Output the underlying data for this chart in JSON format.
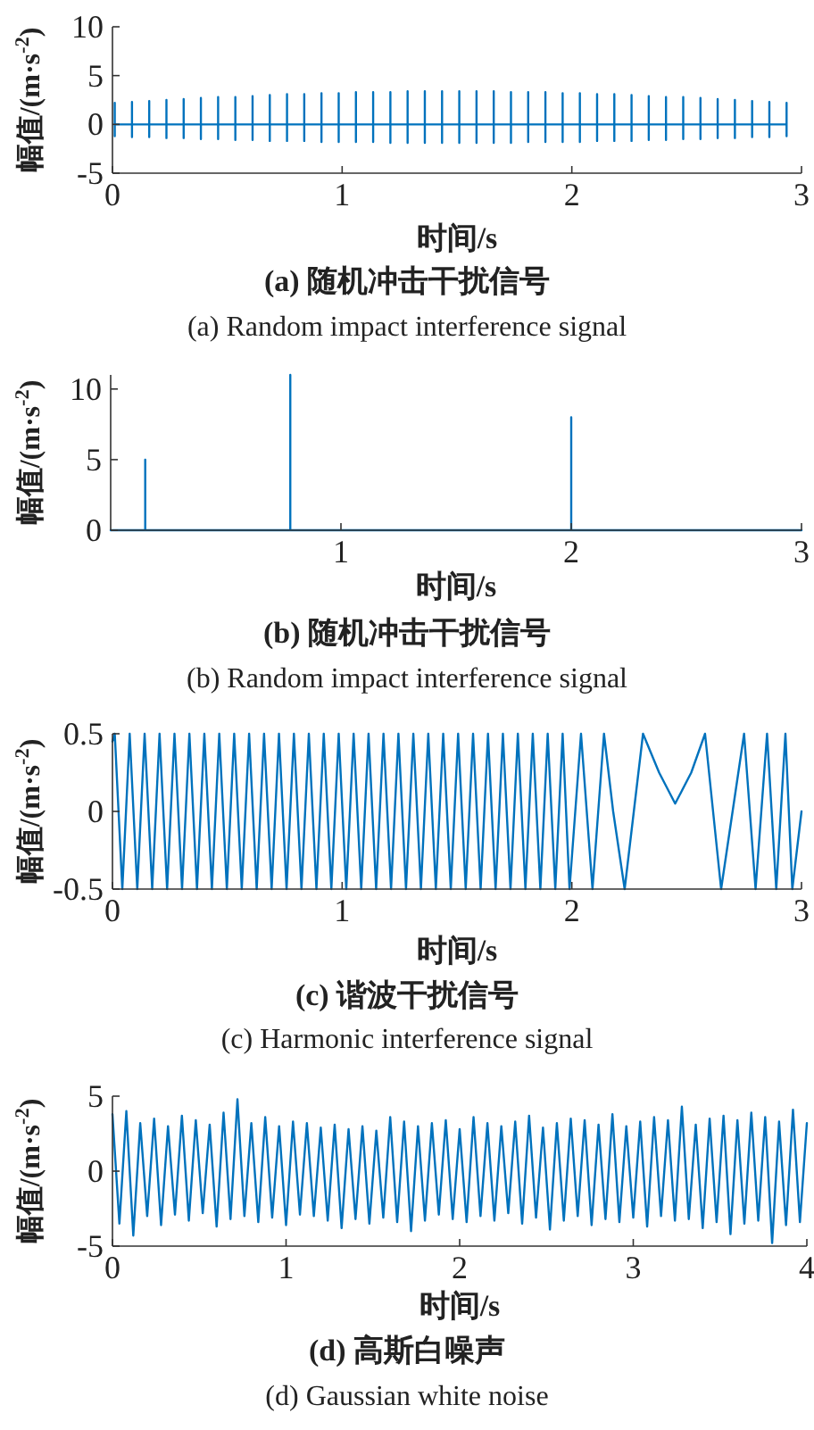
{
  "chart_data": [
    {
      "type": "line",
      "title": "(a) 随机冲击干扰信号",
      "subtitle": "(a) Random impact interference signal",
      "xlabel": "时间/s",
      "ylabel": "幅值/(m·s$^{-2}$)",
      "xlim": [
        0,
        3
      ],
      "ylim": [
        -5,
        10
      ],
      "xticks": [
        0,
        1,
        2,
        3
      ],
      "yticks": [
        -5,
        0,
        5,
        10
      ],
      "color": "#0072bd",
      "x": [
        0.01,
        0.01,
        0.01,
        0.01,
        0.085,
        0.085,
        0.085,
        0.085,
        0.16,
        0.16,
        0.16,
        0.16,
        0.235,
        0.235,
        0.235,
        0.235,
        0.31,
        0.31,
        0.31,
        0.31,
        0.385,
        0.385,
        0.385,
        0.385,
        0.46,
        0.46,
        0.46,
        0.46,
        0.535,
        0.535,
        0.535,
        0.535,
        0.61,
        0.61,
        0.61,
        0.61,
        0.685,
        0.685,
        0.685,
        0.685,
        0.76,
        0.76,
        0.76,
        0.76,
        0.835,
        0.835,
        0.835,
        0.835,
        0.91,
        0.91,
        0.91,
        0.91,
        0.985,
        0.985,
        0.985,
        0.985,
        1.06,
        1.06,
        1.06,
        1.06,
        1.135,
        1.135,
        1.135,
        1.135,
        1.21,
        1.21,
        1.21,
        1.21,
        1.285,
        1.285,
        1.285,
        1.285,
        1.36,
        1.36,
        1.36,
        1.36,
        1.435,
        1.435,
        1.435,
        1.435,
        1.51,
        1.51,
        1.51,
        1.51,
        1.585,
        1.585,
        1.585,
        1.585,
        1.66,
        1.66,
        1.66,
        1.66,
        1.735,
        1.735,
        1.735,
        1.735,
        1.81,
        1.81,
        1.81,
        1.81,
        1.885,
        1.885,
        1.885,
        1.885,
        1.96,
        1.96,
        1.96,
        1.96,
        2.035,
        2.035,
        2.035,
        2.035,
        2.11,
        2.11,
        2.11,
        2.11,
        2.185,
        2.185,
        2.185,
        2.185,
        2.26,
        2.26,
        2.26,
        2.26,
        2.335,
        2.335,
        2.335,
        2.335,
        2.41,
        2.41,
        2.41,
        2.41,
        2.485,
        2.485,
        2.485,
        2.485,
        2.56,
        2.56,
        2.56,
        2.56,
        2.635,
        2.635,
        2.635,
        2.635,
        2.71,
        2.71,
        2.71,
        2.71,
        2.785,
        2.785,
        2.785,
        2.785,
        2.86,
        2.86,
        2.86,
        2.86,
        2.935,
        2.935,
        2.935,
        2.935
      ],
      "values": [
        0,
        2.2,
        -1.2,
        0,
        0,
        2.3,
        -1.3,
        0,
        0,
        2.4,
        -1.3,
        0,
        0,
        2.5,
        -1.4,
        0,
        0,
        2.6,
        -1.4,
        0,
        0,
        2.7,
        -1.5,
        0,
        0,
        2.8,
        -1.5,
        0,
        0,
        2.8,
        -1.6,
        0,
        0,
        2.9,
        -1.6,
        0,
        0,
        3.0,
        -1.7,
        0,
        0,
        3.1,
        -1.7,
        0,
        0,
        3.1,
        -1.7,
        0,
        0,
        3.2,
        -1.8,
        0,
        0,
        3.2,
        -1.8,
        0,
        0,
        3.3,
        -1.8,
        0,
        0,
        3.3,
        -1.8,
        0,
        0,
        3.3,
        -1.9,
        0,
        0,
        3.4,
        -1.9,
        0,
        0,
        3.4,
        -1.9,
        0,
        0,
        3.4,
        -1.9,
        0,
        0,
        3.4,
        -1.9,
        0,
        0,
        3.4,
        -1.9,
        0,
        0,
        3.4,
        -1.9,
        0,
        0,
        3.3,
        -1.9,
        0,
        0,
        3.3,
        -1.8,
        0,
        0,
        3.3,
        -1.8,
        0,
        0,
        3.2,
        -1.8,
        0,
        0,
        3.2,
        -1.8,
        0,
        0,
        3.1,
        -1.7,
        0,
        0,
        3.1,
        -1.7,
        0,
        0,
        3.0,
        -1.7,
        0,
        0,
        2.9,
        -1.6,
        0,
        0,
        2.8,
        -1.6,
        0,
        0,
        2.8,
        -1.5,
        0,
        0,
        2.7,
        -1.5,
        0,
        0,
        2.6,
        -1.4,
        0,
        0,
        2.5,
        -1.4,
        0,
        0,
        2.4,
        -1.3,
        0,
        0,
        2.3,
        -1.3,
        0,
        0,
        2.2,
        -1.2,
        0
      ]
    },
    {
      "type": "line",
      "title": "(b) 随机冲击干扰信号",
      "subtitle": "(b) Random impact interference signal",
      "xlabel": "时间/s",
      "ylabel": "幅值/(m·s$^{-2}$)",
      "xlim": [
        0,
        3
      ],
      "ylim": [
        0,
        11
      ],
      "xticks": [
        1,
        2,
        3
      ],
      "yticks": [
        0,
        5,
        10
      ],
      "color": "#0072bd",
      "x": [
        0,
        0.15,
        0.15,
        0.15,
        0.78,
        0.78,
        0.78,
        2.0,
        2.0,
        2.0,
        3.0
      ],
      "values": [
        0,
        0,
        5,
        0,
        0,
        11,
        0,
        0,
        8,
        0,
        0
      ]
    },
    {
      "type": "line",
      "title": "(c) 谐波干扰信号",
      "subtitle": "(c) Harmonic interference signal",
      "xlabel": "时间/s",
      "ylabel": "幅值/(m·s$^{-2}$)",
      "xlim": [
        0,
        3
      ],
      "ylim": [
        -0.5,
        0.5
      ],
      "xticks": [
        0,
        1,
        2,
        3
      ],
      "yticks": [
        -0.5,
        0,
        0.5
      ],
      "color": "#0072bd",
      "x": [
        0,
        0.01,
        0.043,
        0.075,
        0.108,
        0.14,
        0.173,
        0.205,
        0.238,
        0.27,
        0.303,
        0.335,
        0.368,
        0.4,
        0.433,
        0.465,
        0.498,
        0.53,
        0.563,
        0.595,
        0.628,
        0.66,
        0.693,
        0.725,
        0.758,
        0.79,
        0.823,
        0.855,
        0.888,
        0.92,
        0.953,
        0.985,
        1.018,
        1.05,
        1.083,
        1.115,
        1.148,
        1.18,
        1.213,
        1.245,
        1.278,
        1.31,
        1.343,
        1.375,
        1.408,
        1.44,
        1.473,
        1.505,
        1.538,
        1.57,
        1.603,
        1.635,
        1.668,
        1.7,
        1.733,
        1.765,
        1.798,
        1.83,
        1.863,
        1.895,
        1.928,
        1.96,
        1.99,
        2.04,
        2.09,
        2.14,
        2.18,
        2.23,
        2.27,
        2.31,
        2.38,
        2.45,
        2.52,
        2.58,
        2.65,
        2.75,
        2.8,
        2.85,
        2.89,
        2.93,
        2.96,
        3
      ],
      "values": [
        0.45,
        0.5,
        -0.5,
        0.5,
        -0.5,
        0.5,
        -0.5,
        0.5,
        -0.5,
        0.5,
        -0.5,
        0.5,
        -0.5,
        0.5,
        -0.5,
        0.5,
        -0.5,
        0.5,
        -0.5,
        0.5,
        -0.5,
        0.5,
        -0.5,
        0.5,
        -0.5,
        0.5,
        -0.5,
        0.5,
        -0.5,
        0.5,
        -0.5,
        0.5,
        -0.5,
        0.5,
        -0.5,
        0.5,
        -0.5,
        0.5,
        -0.5,
        0.5,
        -0.5,
        0.5,
        -0.5,
        0.5,
        -0.5,
        0.5,
        -0.5,
        0.5,
        -0.5,
        0.5,
        -0.5,
        0.5,
        -0.5,
        0.5,
        -0.5,
        0.5,
        -0.5,
        0.5,
        -0.5,
        0.5,
        -0.5,
        0.5,
        -0.5,
        0.5,
        -0.5,
        0.5,
        0,
        -0.5,
        0,
        0.5,
        0.25,
        0.05,
        0.25,
        0.5,
        -0.5,
        0.5,
        -0.5,
        0.5,
        -0.5,
        0.5,
        -0.5,
        0
      ]
    },
    {
      "type": "line",
      "title": "(d) 高斯白噪声",
      "subtitle": "(d) Gaussian white noise",
      "xlabel": "时间/s",
      "ylabel": "幅值/(m·s$^{-2}$)",
      "xlim": [
        0,
        4
      ],
      "ylim": [
        -5,
        5
      ],
      "xticks": [
        0,
        1,
        2,
        3,
        4
      ],
      "yticks": [
        -5,
        0,
        5
      ],
      "color": "#0072bd",
      "x": [
        0,
        0.04,
        0.08,
        0.12,
        0.16,
        0.2,
        0.24,
        0.28,
        0.32,
        0.36,
        0.4,
        0.44,
        0.48,
        0.52,
        0.56,
        0.6,
        0.64,
        0.68,
        0.72,
        0.76,
        0.8,
        0.84,
        0.88,
        0.92,
        0.96,
        1,
        1.04,
        1.08,
        1.12,
        1.16,
        1.2,
        1.24,
        1.28,
        1.32,
        1.36,
        1.4,
        1.44,
        1.48,
        1.52,
        1.56,
        1.6,
        1.64,
        1.68,
        1.72,
        1.76,
        1.8,
        1.84,
        1.88,
        1.92,
        1.96,
        2,
        2.04,
        2.08,
        2.12,
        2.16,
        2.2,
        2.24,
        2.28,
        2.32,
        2.36,
        2.4,
        2.44,
        2.48,
        2.52,
        2.56,
        2.6,
        2.64,
        2.68,
        2.72,
        2.76,
        2.8,
        2.84,
        2.88,
        2.92,
        2.96,
        3,
        3.04,
        3.08,
        3.12,
        3.16,
        3.2,
        3.24,
        3.28,
        3.32,
        3.36,
        3.4,
        3.44,
        3.48,
        3.52,
        3.56,
        3.6,
        3.64,
        3.68,
        3.72,
        3.76,
        3.8,
        3.84,
        3.88,
        3.92,
        3.96,
        4
      ],
      "values": [
        3.8,
        -3.5,
        4.0,
        -4.3,
        3.2,
        -3.0,
        3.5,
        -3.6,
        3.0,
        -2.9,
        3.7,
        -3.3,
        3.4,
        -2.8,
        3.1,
        -3.7,
        3.9,
        -3.2,
        4.8,
        -3.0,
        3.2,
        -3.4,
        3.6,
        -3.1,
        3.0,
        -3.6,
        3.3,
        -2.9,
        3.2,
        -3.0,
        2.9,
        -3.3,
        3.1,
        -3.8,
        2.8,
        -3.2,
        3.0,
        -3.5,
        2.7,
        -3.1,
        3.6,
        -3.4,
        3.3,
        -4.0,
        3.0,
        -3.3,
        3.2,
        -2.9,
        3.4,
        -3.2,
        2.8,
        -3.4,
        3.6,
        -3.0,
        3.2,
        -3.3,
        3.0,
        -2.8,
        3.3,
        -3.5,
        3.7,
        -3.1,
        2.9,
        -3.9,
        3.2,
        -3.3,
        3.5,
        -3.0,
        3.4,
        -3.6,
        3.1,
        -3.2,
        3.8,
        -3.4,
        3.0,
        -3.1,
        3.3,
        -3.7,
        3.6,
        -3.0,
        3.4,
        -3.3,
        4.3,
        -3.2,
        3.1,
        -3.8,
        3.5,
        -3.4,
        3.7,
        -4.2,
        3.4,
        -3.5,
        3.9,
        -3.3,
        3.6,
        -4.8,
        3.3,
        -3.6,
        4.1,
        -3.4,
        3.2
      ]
    }
  ]
}
